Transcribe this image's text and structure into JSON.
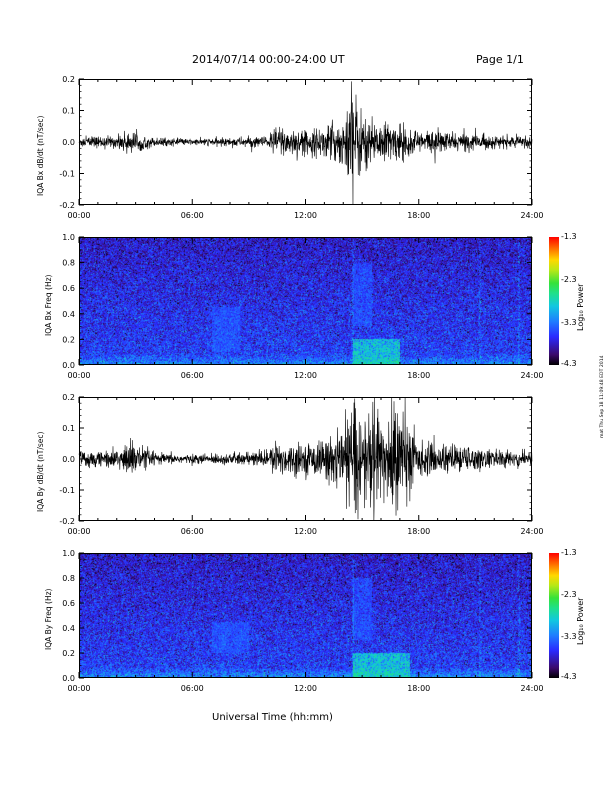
{
  "header": {
    "date_range": "2014/07/14  00:00-24:00 UT",
    "page": "Page 1/1"
  },
  "x_axis": {
    "label": "Universal Time (hh:mm)",
    "ticks": [
      "00:00",
      "06:00",
      "12:00",
      "18:00",
      "24:00"
    ]
  },
  "colorbar": {
    "title": "Log₁₀ Power",
    "ticks": [
      "-1.3",
      "-2.3",
      "-3.3",
      "-4.3"
    ]
  },
  "side_note": "mat Thu Sep 18 11:09:48 EDT 2014",
  "chart_data": [
    {
      "type": "line",
      "ylabel": "IQA Bx dB/dt (nT/sec)",
      "ylim": [
        -0.2,
        0.2
      ],
      "yticks": [
        "0.2",
        "0.1",
        "0.0",
        "-0.1",
        "-0.2"
      ],
      "xlim_hours": [
        0,
        24
      ],
      "amplitude_envelope": {
        "hours": [
          0,
          2,
          2.5,
          4,
          6,
          8,
          10,
          10.5,
          12,
          13,
          14,
          14.5,
          15,
          15.5,
          16,
          17,
          18,
          19,
          20,
          21,
          22,
          23,
          24
        ],
        "amplitude": [
          0.02,
          0.02,
          0.04,
          0.015,
          0.01,
          0.015,
          0.02,
          0.06,
          0.04,
          0.05,
          0.09,
          0.2,
          0.1,
          0.08,
          0.07,
          0.06,
          0.04,
          0.04,
          0.03,
          0.03,
          0.02,
          0.02,
          0.02
        ]
      }
    },
    {
      "type": "heatmap",
      "ylabel": "IQA Bx Freq (Hz)",
      "ylim": [
        0.0,
        1.0
      ],
      "yticks": [
        "1.0",
        "0.8",
        "0.6",
        "0.4",
        "0.2",
        "0.0"
      ],
      "xlim_hours": [
        0,
        24
      ],
      "color_range_log10_power": [
        -4.3,
        -1.3
      ],
      "features": [
        {
          "hours": [
            14.5,
            17.0
          ],
          "freq_hz": [
            0.0,
            0.2
          ],
          "log10_power": -2.3
        },
        {
          "hours": [
            7.0,
            8.5
          ],
          "freq_hz": [
            0.1,
            0.45
          ],
          "log10_power": -3.3
        },
        {
          "hours": [
            14.5,
            15.5
          ],
          "freq_hz": [
            0.3,
            0.8
          ],
          "log10_power": -3.3
        }
      ]
    },
    {
      "type": "line",
      "ylabel": "IQA By dB/dt (nT/sec)",
      "ylim": [
        -0.2,
        0.2
      ],
      "yticks": [
        "0.2",
        "0.1",
        "0.0",
        "-0.1",
        "-0.2"
      ],
      "xlim_hours": [
        0,
        24
      ],
      "amplitude_envelope": {
        "hours": [
          0,
          2,
          2.5,
          4,
          6,
          8,
          10,
          10.5,
          12,
          13,
          14,
          14.5,
          15,
          15.5,
          16,
          17,
          18,
          19,
          20,
          21,
          22,
          23,
          24
        ],
        "amplitude": [
          0.03,
          0.03,
          0.07,
          0.02,
          0.015,
          0.02,
          0.03,
          0.06,
          0.05,
          0.07,
          0.1,
          0.2,
          0.15,
          0.2,
          0.15,
          0.2,
          0.06,
          0.05,
          0.05,
          0.04,
          0.03,
          0.03,
          0.03
        ]
      }
    },
    {
      "type": "heatmap",
      "ylabel": "IQA By Freq (Hz)",
      "ylim": [
        0.0,
        1.0
      ],
      "yticks": [
        "1.0",
        "0.8",
        "0.6",
        "0.4",
        "0.2",
        "0.0"
      ],
      "xlim_hours": [
        0,
        24
      ],
      "color_range_log10_power": [
        -4.3,
        -1.3
      ],
      "features": [
        {
          "hours": [
            14.5,
            17.5
          ],
          "freq_hz": [
            0.0,
            0.2
          ],
          "log10_power": -2.3
        },
        {
          "hours": [
            7.0,
            9.0
          ],
          "freq_hz": [
            0.2,
            0.45
          ],
          "log10_power": -3.3
        },
        {
          "hours": [
            14.5,
            15.5
          ],
          "freq_hz": [
            0.3,
            0.8
          ],
          "log10_power": -3.3
        }
      ]
    }
  ]
}
